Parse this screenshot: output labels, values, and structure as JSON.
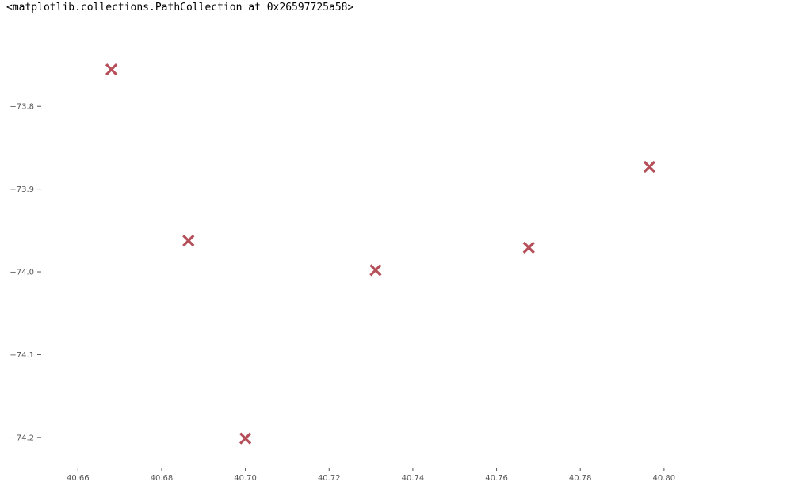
{
  "output": {
    "repr_text": "<matplotlib.collections.PathCollection at 0x26597725a58>"
  },
  "chart_data": {
    "type": "scatter",
    "title": "",
    "xlabel": "",
    "ylabel": "",
    "grid": false,
    "marker": "x",
    "color": "#b5505a",
    "x": [
      40.668,
      40.6864,
      40.7,
      40.7311,
      40.7677,
      40.7965
    ],
    "y": [
      -73.7554,
      -73.9623,
      -74.2012,
      -73.9979,
      -73.9707,
      -73.8731
    ],
    "xlim": [
      40.6518,
      40.8288
    ],
    "ylim": [
      -74.2327,
      -73.7002
    ],
    "xticks": [
      40.66,
      40.68,
      40.7,
      40.72,
      40.74,
      40.76,
      40.78,
      40.8
    ],
    "xtick_labels": [
      "40.66",
      "40.68",
      "40.70",
      "40.72",
      "40.74",
      "40.76",
      "40.78",
      "40.80"
    ],
    "yticks": [
      -73.8,
      -73.9,
      -74.0,
      -74.1,
      -74.2
    ],
    "ytick_labels": [
      "−73.8",
      "−73.9",
      "−74.0",
      "−74.1",
      "−74.2"
    ]
  }
}
